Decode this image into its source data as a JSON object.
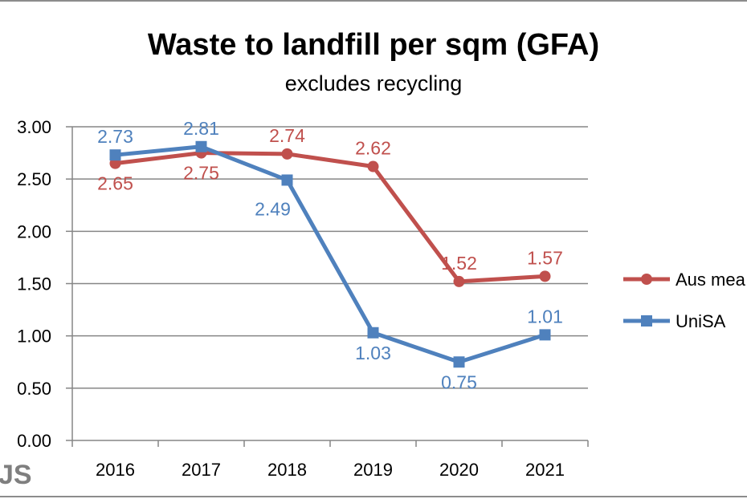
{
  "chart_data": {
    "type": "line",
    "title": "Waste to landfill per sqm (GFA)",
    "subtitle": "excludes recycling",
    "xlabel": "",
    "ylabel": "",
    "categories": [
      "2016",
      "2017",
      "2018",
      "2019",
      "2020",
      "2021"
    ],
    "ylim": [
      0,
      3
    ],
    "yticks": [
      "0.00",
      "0.50",
      "1.00",
      "1.50",
      "2.00",
      "2.50",
      "3.00"
    ],
    "grid": true,
    "legend_position": "right",
    "series": [
      {
        "name": "Aus mea",
        "color": "#c0504d",
        "marker": "circle",
        "values": [
          2.65,
          2.75,
          2.74,
          2.62,
          1.52,
          1.57
        ],
        "labels": [
          "2.65",
          "2.75",
          "2.74",
          "2.62",
          "1.52",
          "1.57"
        ]
      },
      {
        "name": "UniSA",
        "color": "#4f81bd",
        "marker": "square",
        "values": [
          2.73,
          2.81,
          2.49,
          1.03,
          0.75,
          1.01
        ],
        "labels": [
          "2.73",
          "2.81",
          "2.49",
          "1.03",
          "0.75",
          "1.01"
        ]
      }
    ],
    "corner_text": "JS"
  }
}
